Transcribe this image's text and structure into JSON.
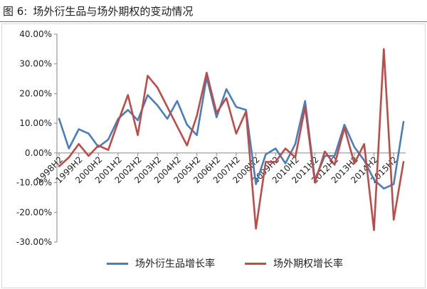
{
  "header": {
    "figure_label": "图 6:",
    "title": "场外衍生品与场外期权的变动情况"
  },
  "colors": {
    "series_1": "#4a7ebb",
    "series_2": "#be4b48"
  },
  "chart_data": {
    "type": "line",
    "ylim": [
      -30,
      40
    ],
    "y_ticks": [
      40,
      30,
      20,
      10,
      0,
      -10,
      -20,
      -30
    ],
    "y_tick_labels": [
      "40.00%",
      "30.00%",
      "20.00%",
      "10.00%",
      "0.00%",
      "-10.00%",
      "-20.00%",
      "-30.00%"
    ],
    "x_tick_labels": [
      "1998H2",
      "1999H2",
      "2000H2",
      "2001H2",
      "2002H2",
      "2003H2",
      "2004H2",
      "2005H2",
      "2006H2",
      "2007H2",
      "2008H2",
      "2009H2",
      "2010H2",
      "2011H2",
      "2012H2",
      "2013H2",
      "2014H2",
      "2015H2"
    ],
    "legend_position": "bottom",
    "series": [
      {
        "name": "场外衍生品增长率",
        "values": [
          11.5,
          1.5,
          8.0,
          6.5,
          2.0,
          4.5,
          11.5,
          14.5,
          11.0,
          19.5,
          16.0,
          11.5,
          17.5,
          9.5,
          6.0,
          25.5,
          12.0,
          21.5,
          15.5,
          14.5,
          -10.5,
          -0.5,
          1.5,
          -3.5,
          3.0,
          17.5,
          -9.0,
          -1.0,
          -1.0,
          9.5,
          2.0,
          -2.5,
          -9.0,
          -12.0,
          -10.5,
          10.5
        ]
      },
      {
        "name": "场外期权增长率",
        "values": [
          -4.5,
          -1.5,
          3.0,
          -1.0,
          2.5,
          1.0,
          10.5,
          19.5,
          6.0,
          26.0,
          22.0,
          15.5,
          9.0,
          2.5,
          12.5,
          27.0,
          13.5,
          18.5,
          6.5,
          14.0,
          -25.5,
          -3.0,
          -3.0,
          1.5,
          -1.5,
          15.5,
          -10.0,
          0.5,
          -4.0,
          8.5,
          -3.5,
          3.0,
          -26.0,
          35.0,
          -22.5,
          -3.0
        ]
      }
    ]
  }
}
